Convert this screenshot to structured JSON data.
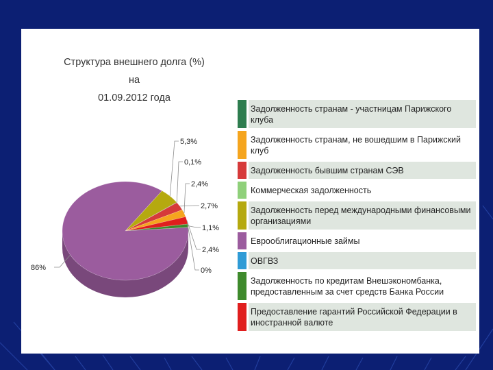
{
  "chart_data": {
    "type": "pie",
    "title": "Структура внешнего долга (%) на 01.09.2012 года",
    "title_line1": "Структура внешнего долга (%) на",
    "title_line2": "01.09.2012 года",
    "slices": [
      {
        "label": "Задолженность странам - участницам Парижского клуба",
        "value": 0.1,
        "value_label": "0,1%",
        "color": "#2e7d4f"
      },
      {
        "label": "Задолженность странам, не вошедшим в Парижский клуб",
        "value": 2.4,
        "value_label": "2,4%",
        "color": "#f5a51e"
      },
      {
        "label": "Задолженность бывшим странам СЭВ",
        "value": 2.7,
        "value_label": "2,7%",
        "color": "#d63a3a"
      },
      {
        "label": "Коммерческая задолженность",
        "value": 0,
        "value_label": "",
        "color": "#8fd07a"
      },
      {
        "label": "Задолженность перед международными финансовыми организациями",
        "value": 5.3,
        "value_label": "5,3%",
        "color": "#b5a90f"
      },
      {
        "label": "Еврооблигационные займы",
        "value": 86,
        "value_label": "86%",
        "color": "#9b5c9e"
      },
      {
        "label": "ОВГВЗ",
        "value": 0,
        "value_label": "0%",
        "color": "#2f9bd6"
      },
      {
        "label": "Задолженность по кредитам Внешэкономбанка, предоставленным за счет средств Банка России",
        "value": 1.1,
        "value_label": "1,1%",
        "color": "#3e8a2c"
      },
      {
        "label": "Предоставление гарантий Российской Федерации в иностранной валюте",
        "value": 2.4,
        "value_label": "2,4%",
        "color": "#e01e1e"
      }
    ],
    "legend_position": "right"
  }
}
